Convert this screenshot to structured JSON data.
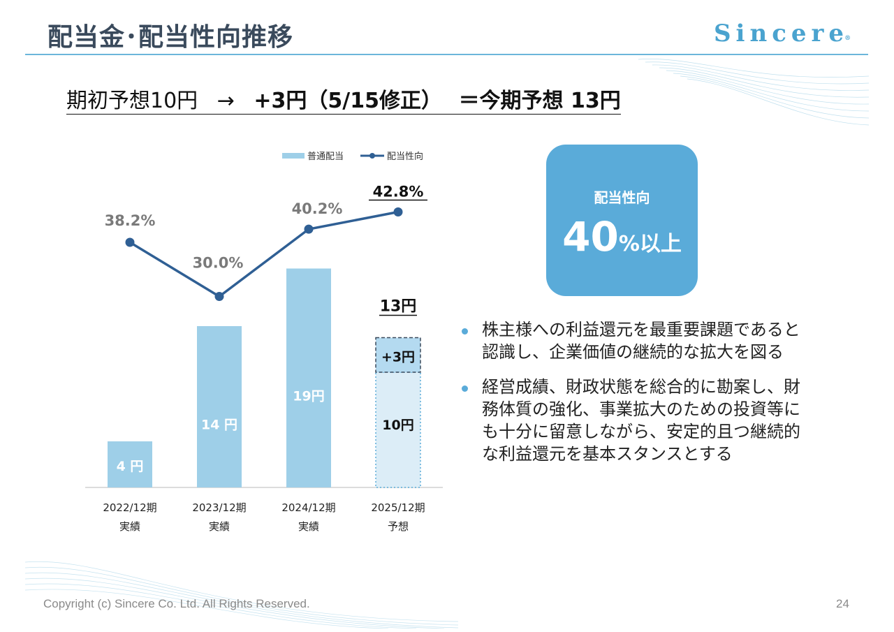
{
  "title": "配当金･配当性向推移",
  "logo": {
    "text": "Sincere",
    "mark": "®"
  },
  "headline": {
    "part1": "期初予想10円",
    "arrow": "→",
    "part2": "+3円（5/15修正）",
    "part3": "＝今期予想 13円"
  },
  "kpi": {
    "label": "配当性向",
    "value": "40",
    "suffix": "%以上"
  },
  "bullets": [
    "株主様への利益還元を最重要課題であると認識し、企業価値の継続的な拡大を図る",
    "経営成績、財政状態を総合的に勘案し、財務体質の強化、事業拡大のための投資等にも十分に留意しながら、安定的且つ継続的な利益還元を基本スタンスとする"
  ],
  "footer": {
    "copyright": "Copyright (c) Sincere Co. Ltd. All Rights Reserved.",
    "page": "24"
  },
  "colors": {
    "bar": "#9ecfe8",
    "bar_forecast": "#dcedf7",
    "bar_increment": "#b4daf0",
    "line": "#2f5f94",
    "accent": "#5aabd9",
    "title": "#3a4a5c"
  },
  "chart_data": {
    "type": "bar",
    "categories": [
      "2022/12期",
      "2023/12期",
      "2024/12期",
      "2025/12期"
    ],
    "category_sublabels": [
      "実績",
      "実績",
      "実績",
      "予想"
    ],
    "series": [
      {
        "name": "普通配当",
        "type": "bar",
        "values": [
          4,
          14,
          19,
          13
        ],
        "value_labels": [
          "4 円",
          "14 円",
          "19円",
          "13円"
        ],
        "forecast_breakdown": {
          "base": 10,
          "base_label": "10円",
          "increment": 3,
          "increment_label": "+3円"
        }
      },
      {
        "name": "配当性向",
        "type": "line",
        "values": [
          38.2,
          30.0,
          40.2,
          42.8
        ],
        "value_labels": [
          "38.2%",
          "30.0%",
          "40.2%",
          "42.8%"
        ]
      }
    ],
    "legend_position": "top",
    "grid": false
  }
}
